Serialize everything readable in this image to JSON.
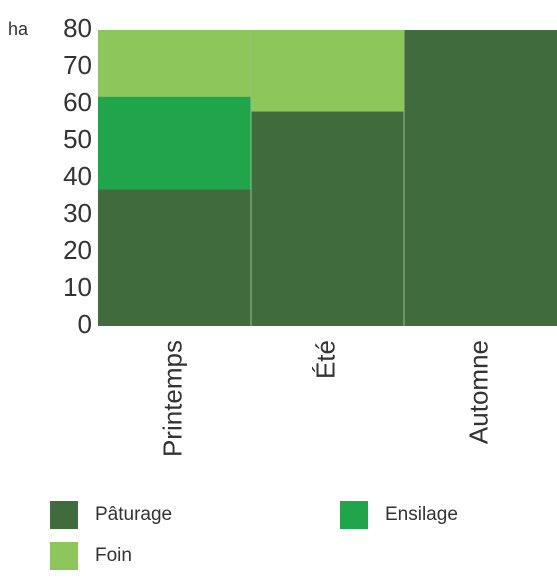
{
  "chart_data": {
    "type": "bar",
    "stacked": true,
    "y_unit_label": "ha",
    "categories": [
      "Printemps",
      "Été",
      "Automne"
    ],
    "series": [
      {
        "name": "Pâturage",
        "color": "#3f6b3d",
        "values": [
          37,
          58,
          80
        ]
      },
      {
        "name": "Ensilage",
        "color": "#20a54b",
        "values": [
          25,
          0,
          0
        ]
      },
      {
        "name": "Foin",
        "color": "#8dc65b",
        "values": [
          18,
          22,
          0
        ]
      }
    ],
    "ylim": [
      0,
      80
    ],
    "yticks": [
      0,
      10,
      20,
      30,
      40,
      50,
      60,
      70,
      80
    ],
    "grid": false
  }
}
